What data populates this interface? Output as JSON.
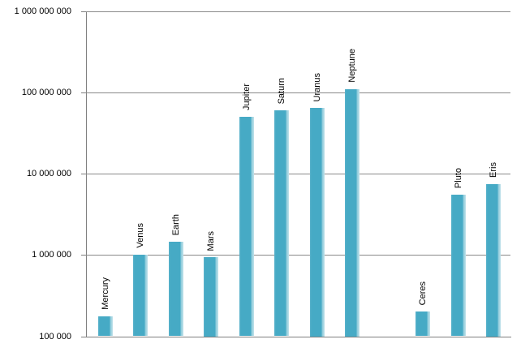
{
  "chart_data": {
    "type": "bar",
    "title": "",
    "xlabel": "",
    "ylabel": "",
    "y_scale": "log",
    "ylim": [
      100000,
      1000000000
    ],
    "grid": "horizontal",
    "legend": "none",
    "categories": [
      "Mercury",
      "Venus",
      "Earth",
      "Mars",
      "Jupiter",
      "Saturn",
      "Uranus",
      "Neptune",
      "",
      "Ceres",
      "Pluto",
      "Eris"
    ],
    "values": [
      175000,
      1000000,
      1450000,
      950000,
      50000000,
      60000000,
      65000000,
      110000000,
      null,
      200000,
      5500000,
      7500000
    ],
    "y_ticks": [
      {
        "label": "1 000 000 000",
        "value": 1000000000
      },
      {
        "label": "100 000 000",
        "value": 100000000
      },
      {
        "label": "10 000 000",
        "value": 10000000
      },
      {
        "label": "1 000 000",
        "value": 1000000
      },
      {
        "label": "100 000",
        "value": 100000
      }
    ],
    "colors": {
      "bar": "#4BACC6",
      "bar_highlight": "#C2E2EB",
      "gridline": "#8A8A8A",
      "axis": "#808080",
      "text": "#000000",
      "background": "#FFFFFF"
    }
  }
}
